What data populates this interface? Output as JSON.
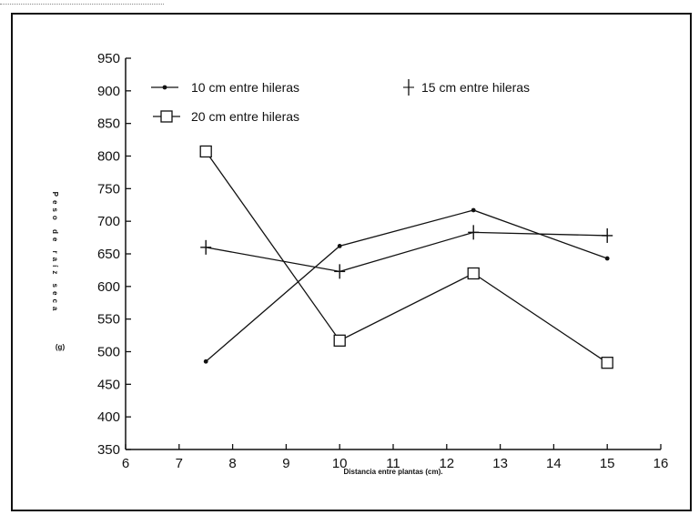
{
  "chart_data": {
    "type": "line",
    "xlabel": "Distancia entre plantas (cm).",
    "ylabel": "Peso de raíz seca",
    "ylabel_unit": "(g)",
    "xlim": [
      6,
      16
    ],
    "ylim": [
      350,
      950
    ],
    "xticks": [
      "6",
      "7",
      "8",
      "9",
      "10",
      "11",
      "12",
      "13",
      "14",
      "15",
      "16"
    ],
    "yticks": [
      "950",
      "900",
      "850",
      "800",
      "750",
      "700",
      "650",
      "600",
      "550",
      "500",
      "450",
      "400",
      "350"
    ],
    "grid": false,
    "legend_position": "top",
    "x": [
      7.5,
      10,
      12.5,
      15
    ],
    "series": [
      {
        "name": "10 cm entre hileras",
        "marker": "dot",
        "values": [
          485,
          662,
          717,
          643
        ]
      },
      {
        "name": "15 cm entre hileras",
        "marker": "plus",
        "values": [
          660,
          623,
          683,
          678
        ]
      },
      {
        "name": "20 cm entre hileras",
        "marker": "square",
        "values": [
          807,
          517,
          620,
          483
        ]
      }
    ]
  }
}
